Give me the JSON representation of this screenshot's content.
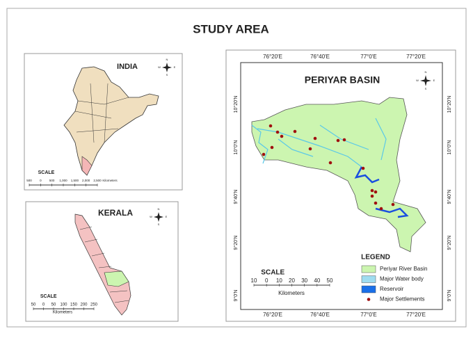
{
  "header": {
    "title": "STUDY AREA"
  },
  "compass": [
    "N",
    "E",
    "S",
    "W"
  ],
  "india": {
    "title": "INDIA",
    "scale_title": "SCALE",
    "scale_ticks": [
      "500",
      "0",
      "500",
      "1,000",
      "1,500",
      "2,000",
      "2,500"
    ],
    "scale_unit": "Kilometers"
  },
  "kerala": {
    "title": "KERALA",
    "scale_title": "SCALE",
    "scale_ticks": [
      "50",
      "0",
      "50",
      "100",
      "150",
      "200",
      "250"
    ],
    "scale_unit": "Kilometers"
  },
  "periyar": {
    "title": "PERIYAR BASIN",
    "lon_labels": [
      "76°20'E",
      "76°40'E",
      "77°0'E",
      "77°20'E"
    ],
    "lat_labels": [
      "10°20'N",
      "10°0'N",
      "9°40'N",
      "9°20'N",
      "9°0'N"
    ],
    "scale_title": "SCALE",
    "scale_ticks": [
      "10",
      "0",
      "10",
      "20",
      "30",
      "40",
      "50"
    ],
    "scale_unit": "Kilometers",
    "legend_title": "LEGEND",
    "legend": [
      "Periyar River Basin",
      "Major Water body",
      "Reservoir",
      "Major Settlements"
    ]
  }
}
